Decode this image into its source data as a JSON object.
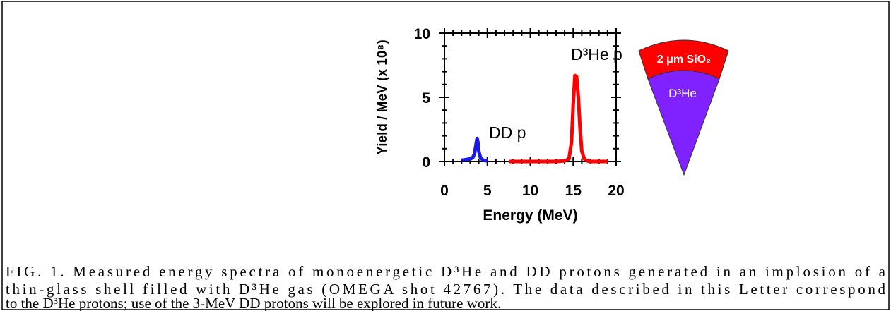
{
  "chart_data": {
    "type": "line",
    "xlabel": "Energy (MeV)",
    "ylabel": "Yield / MeV  (x 10⁸)",
    "xlim": [
      0,
      20
    ],
    "xticks": [
      0,
      5,
      10,
      15,
      20
    ],
    "xminorticks": [
      1,
      2,
      3,
      4,
      6,
      7,
      8,
      9,
      11,
      12,
      13,
      14,
      16,
      17,
      18,
      19
    ],
    "ylim": [
      0,
      10
    ],
    "yticks": [
      0,
      5,
      10
    ],
    "yminorticks": [
      1,
      2,
      3,
      4,
      6,
      7,
      8,
      9
    ],
    "series": [
      {
        "name": "DD p",
        "color": "#1a1ae6",
        "x": [
          2,
          2.5,
          3,
          3.3,
          3.5,
          3.7,
          3.8,
          3.9,
          4.0,
          4.2,
          4.5,
          5
        ],
        "values": [
          0.1,
          0.15,
          0.2,
          0.3,
          0.6,
          1.4,
          1.8,
          1.5,
          0.8,
          0.3,
          0.1,
          0.05
        ]
      },
      {
        "name": "D³He p",
        "color": "#ff0000",
        "x": [
          7.5,
          9,
          10,
          11,
          12,
          13,
          14,
          14.5,
          14.8,
          15,
          15.2,
          15.4,
          15.6,
          15.8,
          16,
          16.3,
          16.6,
          17,
          18,
          19
        ],
        "values": [
          0,
          0,
          0,
          0,
          0,
          0,
          0.05,
          0.2,
          1.5,
          4.5,
          6.7,
          6.6,
          5,
          2.5,
          0.8,
          0.2,
          0.05,
          0,
          0,
          0
        ]
      }
    ]
  },
  "diagram": {
    "shell_label": "2 μm SiO₂",
    "core_label": "D³He"
  },
  "caption": {
    "lines": [
      "FIG. 1. Measured energy spectra of monoenergetic D³He and DD protons generated in an implosion of a",
      "thin-glass shell filled with D³He gas (OMEGA shot 42767).  The data described in this Letter correspond",
      "to the D³He protons; use of the 3-MeV DD protons will be explored in future work."
    ]
  }
}
